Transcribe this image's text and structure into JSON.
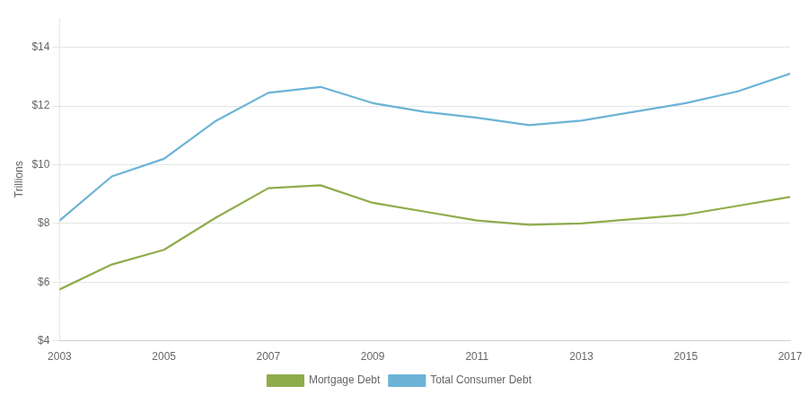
{
  "chart_data": {
    "type": "line",
    "x": [
      2003,
      2004,
      2005,
      2006,
      2007,
      2008,
      2009,
      2010,
      2011,
      2012,
      2013,
      2015,
      2016,
      2017
    ],
    "series": [
      {
        "name": "Mortgage Debt",
        "color": "#8fac4b",
        "values": [
          5.75,
          6.6,
          7.1,
          8.2,
          9.2,
          9.3,
          8.7,
          8.4,
          8.1,
          7.95,
          8.0,
          8.3,
          8.6,
          8.9
        ]
      },
      {
        "name": "Total Consumer Debt",
        "color": "#6bb3d6",
        "values": [
          8.1,
          9.6,
          10.2,
          11.5,
          12.45,
          12.65,
          12.1,
          11.8,
          11.6,
          11.35,
          11.5,
          12.1,
          12.5,
          13.1
        ]
      }
    ],
    "xlim": [
      2003,
      2017
    ],
    "xticks": [
      2003,
      2005,
      2007,
      2009,
      2011,
      2013,
      2015,
      2017
    ],
    "ylim": [
      4,
      15
    ],
    "yticks": [
      {
        "value": 4,
        "label": "$4"
      },
      {
        "value": 6,
        "label": "$6"
      },
      {
        "value": 8,
        "label": "$8"
      },
      {
        "value": 10,
        "label": "$10"
      },
      {
        "value": 12,
        "label": "$12"
      },
      {
        "value": 14,
        "label": "$14"
      }
    ],
    "ylabel": "Trillions",
    "grid": "y",
    "legend": "bottom"
  }
}
